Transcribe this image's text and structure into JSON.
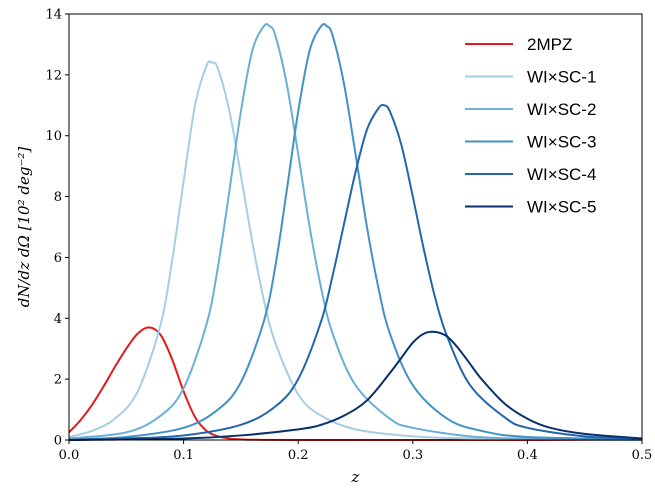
{
  "chart_data": {
    "type": "line",
    "xlabel": "z",
    "ylabel": "dN/dz dΩ [10² deg⁻²]",
    "xlim": [
      0.0,
      0.5
    ],
    "ylim": [
      0,
      14
    ],
    "xticks": [
      0.0,
      0.1,
      0.2,
      0.3,
      0.4,
      0.5
    ],
    "yticks": [
      0,
      2,
      4,
      6,
      8,
      10,
      12,
      14
    ],
    "xtick_labels": [
      "0.0",
      "0.1",
      "0.2",
      "0.3",
      "0.4",
      "0.5"
    ],
    "ytick_labels": [
      "0",
      "2",
      "4",
      "6",
      "8",
      "10",
      "12",
      "14"
    ],
    "grid": false,
    "legend_position": "top-right",
    "series": [
      {
        "name": "2MPZ",
        "color": "#e31a1c",
        "x": [
          0.0,
          0.01,
          0.02,
          0.03,
          0.04,
          0.05,
          0.06,
          0.07,
          0.08,
          0.09,
          0.1,
          0.11,
          0.12,
          0.13,
          0.14,
          0.15,
          0.2,
          0.5
        ],
        "y": [
          0.25,
          0.65,
          1.15,
          1.75,
          2.4,
          3.0,
          3.5,
          3.7,
          3.45,
          2.65,
          1.6,
          0.75,
          0.3,
          0.12,
          0.05,
          0.02,
          0.0,
          0.0
        ]
      },
      {
        "name": "WI×SC-1",
        "color": "#a6cee3",
        "x": [
          0.0,
          0.02,
          0.04,
          0.06,
          0.08,
          0.09,
          0.1,
          0.11,
          0.12,
          0.125,
          0.13,
          0.14,
          0.15,
          0.16,
          0.17,
          0.18,
          0.2,
          0.22,
          0.25,
          0.3,
          0.35,
          0.4,
          0.5
        ],
        "y": [
          0.1,
          0.3,
          0.7,
          1.6,
          3.8,
          5.9,
          8.5,
          11.0,
          12.3,
          12.4,
          12.2,
          10.8,
          8.7,
          6.5,
          4.6,
          3.2,
          1.5,
          0.8,
          0.35,
          0.12,
          0.05,
          0.02,
          0.0
        ]
      },
      {
        "name": "WI×SC-2",
        "color": "#6baed6",
        "x": [
          0.0,
          0.05,
          0.08,
          0.1,
          0.12,
          0.13,
          0.14,
          0.15,
          0.16,
          0.17,
          0.175,
          0.18,
          0.19,
          0.2,
          0.21,
          0.22,
          0.23,
          0.25,
          0.28,
          0.3,
          0.35,
          0.4,
          0.5
        ],
        "y": [
          0.05,
          0.25,
          0.8,
          1.7,
          3.8,
          5.7,
          8.2,
          10.8,
          12.8,
          13.6,
          13.6,
          13.3,
          11.7,
          9.4,
          7.0,
          5.0,
          3.5,
          1.8,
          0.7,
          0.4,
          0.12,
          0.04,
          0.0
        ]
      },
      {
        "name": "WI×SC-3",
        "color": "#4292c6",
        "x": [
          0.0,
          0.05,
          0.1,
          0.13,
          0.15,
          0.17,
          0.18,
          0.19,
          0.2,
          0.21,
          0.22,
          0.225,
          0.23,
          0.24,
          0.25,
          0.26,
          0.27,
          0.28,
          0.3,
          0.33,
          0.36,
          0.4,
          0.5
        ],
        "y": [
          0.02,
          0.1,
          0.4,
          1.0,
          1.9,
          3.9,
          5.7,
          8.2,
          10.8,
          12.8,
          13.6,
          13.6,
          13.3,
          11.7,
          9.4,
          7.0,
          5.0,
          3.5,
          1.8,
          0.7,
          0.3,
          0.1,
          0.02
        ]
      },
      {
        "name": "WI×SC-4",
        "color": "#2166ac",
        "x": [
          0.0,
          0.05,
          0.1,
          0.15,
          0.18,
          0.2,
          0.22,
          0.23,
          0.24,
          0.25,
          0.26,
          0.27,
          0.275,
          0.28,
          0.29,
          0.3,
          0.31,
          0.32,
          0.33,
          0.35,
          0.38,
          0.4,
          0.45,
          0.5
        ],
        "y": [
          0.0,
          0.05,
          0.15,
          0.5,
          1.1,
          2.0,
          3.9,
          5.4,
          7.1,
          8.8,
          10.2,
          10.9,
          11.0,
          10.8,
          9.7,
          8.0,
          6.2,
          4.6,
          3.4,
          1.8,
          0.75,
          0.4,
          0.12,
          0.05
        ]
      },
      {
        "name": "WI×SC-5",
        "color": "#08306b",
        "x": [
          0.0,
          0.1,
          0.15,
          0.2,
          0.22,
          0.24,
          0.26,
          0.28,
          0.29,
          0.3,
          0.31,
          0.32,
          0.33,
          0.34,
          0.35,
          0.36,
          0.38,
          0.4,
          0.42,
          0.45,
          0.5
        ],
        "y": [
          0.0,
          0.05,
          0.15,
          0.35,
          0.5,
          0.8,
          1.3,
          2.2,
          2.7,
          3.2,
          3.5,
          3.55,
          3.4,
          3.0,
          2.5,
          2.0,
          1.2,
          0.7,
          0.4,
          0.2,
          0.05
        ]
      }
    ]
  }
}
